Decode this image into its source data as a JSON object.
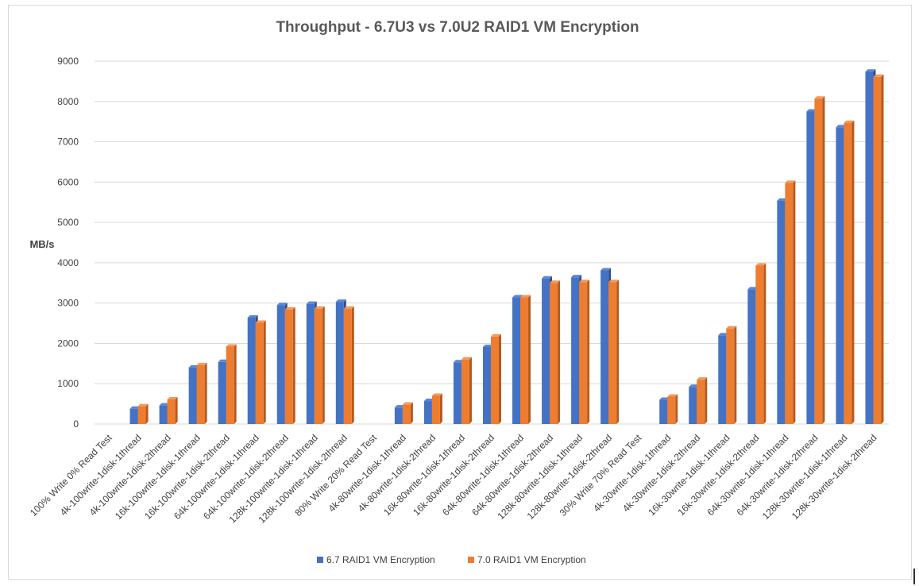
{
  "chart_data": {
    "type": "bar",
    "title": "Throughput - 6.7U3 vs 7.0U2 RAID1 VM Encryption",
    "xlabel": "",
    "ylabel": "MB/s",
    "ylim": [
      0,
      9000
    ],
    "yticks": [
      0,
      1000,
      2000,
      3000,
      4000,
      5000,
      6000,
      7000,
      8000,
      9000
    ],
    "grid": true,
    "legend_position": "bottom",
    "categories": [
      "100% Write 0% Read Test",
      "4k-100write-1disk-1thread",
      "4k-100write-1disk-2thread",
      "16k-100write-1disk-1thread",
      "16k-100write-1disk-2thread",
      "64k-100write-1disk-1thread",
      "64k-100write-1disk-2thread",
      "128k-100write-1disk-1thread",
      "128k-100write-1disk-2thread",
      "80% Write 20% Read Test",
      "4k-80write-1disk-1thread",
      "4k-80write-1disk-2thread",
      "16k-80write-1disk-1thread",
      "16k-80write-1disk-2thread",
      "64k-80write-1disk-1thread",
      "64k-80write-1disk-2thread",
      "128k-80write-1disk-1thread",
      "128k-80write-1disk-2thread",
      "30% Write 70% Read Test",
      "4k-30write-1disk-1thread",
      "4k-30write-1disk-2thread",
      "16k-30write-1disk-1thread",
      "16k-30write-1disk-2thread",
      "64k-30write-1disk-1thread",
      "64k-30write-1disk-2thread",
      "128k-30write-1disk-1thread",
      "128k-30write-1disk-2thread"
    ],
    "series": [
      {
        "name": "6.7 RAID1 VM Encryption",
        "color": "#4472c4",
        "values": [
          null,
          380,
          460,
          1400,
          1540,
          2640,
          2950,
          2980,
          3030,
          null,
          410,
          570,
          1530,
          1910,
          3140,
          3610,
          3640,
          3810,
          null,
          600,
          920,
          2200,
          3340,
          5540,
          7750,
          7360,
          8740
        ]
      },
      {
        "name": "7.0 RAID1 VM Encryption",
        "color": "#ed7d31",
        "values": [
          null,
          440,
          610,
          1460,
          1920,
          2510,
          2840,
          2860,
          2860,
          null,
          480,
          700,
          1600,
          2170,
          3140,
          3500,
          3520,
          3520,
          null,
          680,
          1100,
          2370,
          3930,
          5980,
          8070,
          7470,
          8610
        ]
      }
    ]
  }
}
